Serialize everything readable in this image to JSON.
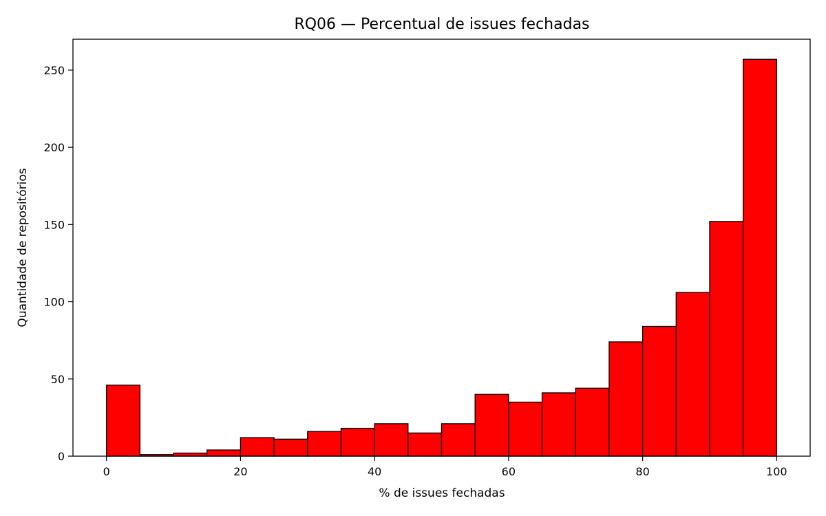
{
  "chart_data": {
    "type": "bar",
    "title": "RQ06 — Percentual de issues fechadas",
    "xlabel": "% de issues fechadas",
    "ylabel": "Quantidade de repositórios",
    "xlim": [
      -5,
      105
    ],
    "ylim": [
      0,
      270
    ],
    "xticks": [
      0,
      20,
      40,
      60,
      80,
      100
    ],
    "yticks": [
      0,
      50,
      100,
      150,
      200,
      250
    ],
    "bar_color": "#ff0000",
    "edge_color": "#000000",
    "grid": false,
    "legend": "none",
    "bins": [
      {
        "start": 0,
        "end": 5,
        "count": 46
      },
      {
        "start": 5,
        "end": 10,
        "count": 1
      },
      {
        "start": 10,
        "end": 15,
        "count": 2
      },
      {
        "start": 15,
        "end": 20,
        "count": 4
      },
      {
        "start": 20,
        "end": 25,
        "count": 12
      },
      {
        "start": 25,
        "end": 30,
        "count": 11
      },
      {
        "start": 30,
        "end": 35,
        "count": 16
      },
      {
        "start": 35,
        "end": 40,
        "count": 18
      },
      {
        "start": 40,
        "end": 45,
        "count": 21
      },
      {
        "start": 45,
        "end": 50,
        "count": 15
      },
      {
        "start": 50,
        "end": 55,
        "count": 21
      },
      {
        "start": 55,
        "end": 60,
        "count": 40
      },
      {
        "start": 60,
        "end": 65,
        "count": 35
      },
      {
        "start": 65,
        "end": 70,
        "count": 41
      },
      {
        "start": 70,
        "end": 75,
        "count": 44
      },
      {
        "start": 75,
        "end": 80,
        "count": 74
      },
      {
        "start": 80,
        "end": 85,
        "count": 84
      },
      {
        "start": 85,
        "end": 90,
        "count": 106
      },
      {
        "start": 90,
        "end": 95,
        "count": 152
      },
      {
        "start": 95,
        "end": 100,
        "count": 257
      }
    ]
  }
}
